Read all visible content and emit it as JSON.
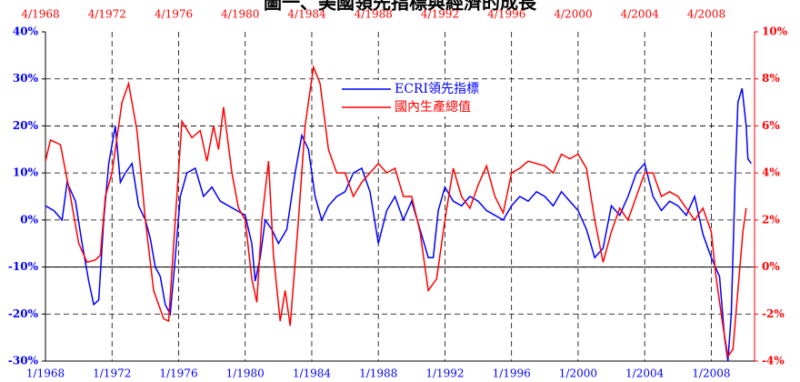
{
  "chart_data": {
    "type": "line",
    "title": "圖一、美國領先指標與經濟的成長",
    "xlim": [
      1968,
      2010.6
    ],
    "xticks": [
      {
        "value": 1968,
        "label": "1/1968"
      },
      {
        "value": 1972,
        "label": "1/1972"
      },
      {
        "value": 1976,
        "label": "1/1976"
      },
      {
        "value": 1980,
        "label": "1/1980"
      },
      {
        "value": 1984,
        "label": "1/1984"
      },
      {
        "value": 1988,
        "label": "1/1988"
      },
      {
        "value": 1992,
        "label": "1/1992"
      },
      {
        "value": 1996,
        "label": "1/1996"
      },
      {
        "value": 2000,
        "label": "1/2000"
      },
      {
        "value": 2004,
        "label": "1/2004"
      },
      {
        "value": 2008,
        "label": "1/2008"
      }
    ],
    "x2ticks": [
      {
        "value": 1968.25,
        "label": "4/1968"
      },
      {
        "value": 1972.25,
        "label": "4/1972"
      },
      {
        "value": 1976.25,
        "label": "4/1976"
      },
      {
        "value": 1980.25,
        "label": "4/1980"
      },
      {
        "value": 1984.25,
        "label": "4/1984"
      },
      {
        "value": 1988.25,
        "label": "4/1988"
      },
      {
        "value": 1992.25,
        "label": "4/1992"
      },
      {
        "value": 1996.25,
        "label": "4/1996"
      },
      {
        "value": 2000.25,
        "label": "4/2000"
      },
      {
        "value": 2004.25,
        "label": "4/2004"
      },
      {
        "value": 2008.25,
        "label": "4/2008"
      }
    ],
    "ylim": [
      -30,
      40
    ],
    "yticks": [
      {
        "value": -30,
        "label": "-30%"
      },
      {
        "value": -20,
        "label": "-20%"
      },
      {
        "value": -10,
        "label": "-10%"
      },
      {
        "value": 0,
        "label": "0%"
      },
      {
        "value": 10,
        "label": "10%"
      },
      {
        "value": 20,
        "label": "20%"
      },
      {
        "value": 30,
        "label": "30%"
      },
      {
        "value": 40,
        "label": "40%"
      }
    ],
    "y2lim": [
      -4,
      10
    ],
    "y2ticks": [
      {
        "value": -4,
        "label": "-4%"
      },
      {
        "value": -2,
        "label": "-2%"
      },
      {
        "value": 0,
        "label": "0%"
      },
      {
        "value": 2,
        "label": "2%"
      },
      {
        "value": 4,
        "label": "4%"
      },
      {
        "value": 6,
        "label": "6%"
      },
      {
        "value": 8,
        "label": "8%"
      },
      {
        "value": 10,
        "label": "10%"
      }
    ],
    "grid": true,
    "series": [
      {
        "name": "ECRI領先指標",
        "color": "#0000ff",
        "axis": "y",
        "x": [
          1968,
          1968.5,
          1969,
          1969.3,
          1969.8,
          1970.2,
          1970.6,
          1970.9,
          1971.2,
          1971.5,
          1971.8,
          1972.2,
          1972.5,
          1972.8,
          1973.2,
          1973.6,
          1974,
          1974.3,
          1974.6,
          1974.9,
          1975.2,
          1975.5,
          1975.8,
          1976.1,
          1976.5,
          1977,
          1977.5,
          1978,
          1978.5,
          1979,
          1979.5,
          1980,
          1980.4,
          1980.6,
          1980.9,
          1981.2,
          1981.6,
          1982,
          1982.5,
          1983,
          1983.4,
          1983.8,
          1984.2,
          1984.6,
          1985,
          1985.5,
          1986,
          1986.5,
          1987,
          1987.5,
          1988,
          1988.5,
          1989,
          1989.5,
          1990,
          1990.5,
          1991,
          1991.3,
          1991.6,
          1992,
          1992.5,
          1993,
          1993.5,
          1994,
          1994.5,
          1995,
          1995.5,
          1996,
          1996.5,
          1997,
          1997.5,
          1998,
          1998.5,
          1999,
          1999.5,
          2000,
          2000.5,
          2001,
          2001.5,
          2002,
          2002.5,
          2003,
          2003.5,
          2004,
          2004.5,
          2005,
          2005.5,
          2006,
          2006.5,
          2007,
          2007.5,
          2008,
          2008.5,
          2008.8,
          2009,
          2009.2,
          2009.45,
          2009.6,
          2009.85,
          2010.1,
          2010.2,
          2010.4
        ],
        "values": [
          3,
          2,
          0,
          8,
          4,
          -5,
          -13,
          -18,
          -17,
          0,
          12,
          20,
          8,
          10,
          12,
          3,
          0,
          -4,
          -10,
          -12,
          -18,
          -20,
          -8,
          5,
          10,
          11,
          5,
          7,
          4,
          3,
          2,
          1,
          -5,
          -13,
          -8,
          0,
          -2,
          -5,
          -2,
          10,
          18,
          15,
          5,
          0,
          3,
          5,
          6,
          10,
          11,
          6,
          -5,
          2,
          5,
          0,
          4,
          -2,
          -8,
          -8,
          2,
          7,
          4,
          3,
          5,
          4,
          2,
          1,
          0,
          3,
          5,
          4,
          6,
          5,
          3,
          6,
          4,
          2,
          -2,
          -8,
          -6,
          3,
          1,
          5,
          10,
          12,
          5,
          2,
          4,
          3,
          1,
          5,
          -3,
          -8,
          -12,
          -25,
          -30,
          -20,
          10,
          25,
          28,
          20,
          13,
          12
        ]
      },
      {
        "name": "國內生產總值",
        "color": "#ff0000",
        "axis": "y2",
        "x": [
          1968,
          1968.3,
          1968.9,
          1969.5,
          1970,
          1970.5,
          1971,
          1971.3,
          1971.6,
          1972,
          1972.6,
          1973,
          1973.5,
          1974,
          1974.5,
          1975.1,
          1975.4,
          1975.8,
          1976.2,
          1976.8,
          1977.3,
          1977.7,
          1978.1,
          1978.4,
          1978.7,
          1979.2,
          1979.6,
          1980,
          1980.4,
          1980.7,
          1981,
          1981.4,
          1981.7,
          1982.1,
          1982.4,
          1982.7,
          1983.2,
          1983.6,
          1984.1,
          1984.5,
          1985,
          1985.5,
          1986,
          1986.5,
          1987,
          1987.5,
          1988,
          1988.5,
          1989,
          1989.5,
          1990,
          1990.5,
          1991,
          1991.5,
          1992,
          1992.5,
          1993,
          1993.5,
          1994,
          1994.5,
          1995,
          1995.5,
          1996,
          1996.5,
          1997,
          1997.5,
          1998,
          1998.5,
          1999,
          1999.5,
          2000,
          2000.5,
          2001,
          2001.5,
          2002,
          2002.5,
          2003,
          2003.5,
          2004,
          2004.5,
          2005,
          2005.5,
          2006,
          2006.5,
          2007,
          2007.5,
          2008,
          2008.3,
          2008.7,
          2009,
          2009.3,
          2009.6,
          2009.9,
          2010.1
        ],
        "values": [
          4.5,
          5.4,
          5.2,
          3,
          1,
          0.2,
          0.3,
          0.5,
          3,
          4,
          7,
          7.8,
          5.8,
          2,
          -1,
          -2.2,
          -2.3,
          2,
          6.2,
          5.5,
          5.8,
          4.5,
          6,
          5,
          6.8,
          4,
          2.5,
          2,
          -0.5,
          -1.5,
          2,
          4.5,
          0.5,
          -2.3,
          -1,
          -2.5,
          2,
          6,
          8.5,
          7.8,
          5,
          4,
          4,
          3,
          3.6,
          4,
          4.4,
          4,
          4.2,
          3,
          3,
          1.5,
          -1,
          -0.5,
          2,
          4.2,
          3,
          2.5,
          3.5,
          4.3,
          3,
          2.3,
          4,
          4.2,
          4.5,
          4.4,
          4.3,
          4,
          4.8,
          4.6,
          4.8,
          4.2,
          2,
          0.2,
          1.5,
          2.5,
          2,
          3,
          4,
          4,
          3,
          3.2,
          3,
          2.5,
          2,
          2.5,
          1.5,
          -0.5,
          -2.5,
          -3.8,
          -3.5,
          -1,
          1.5,
          2.5
        ]
      }
    ]
  }
}
